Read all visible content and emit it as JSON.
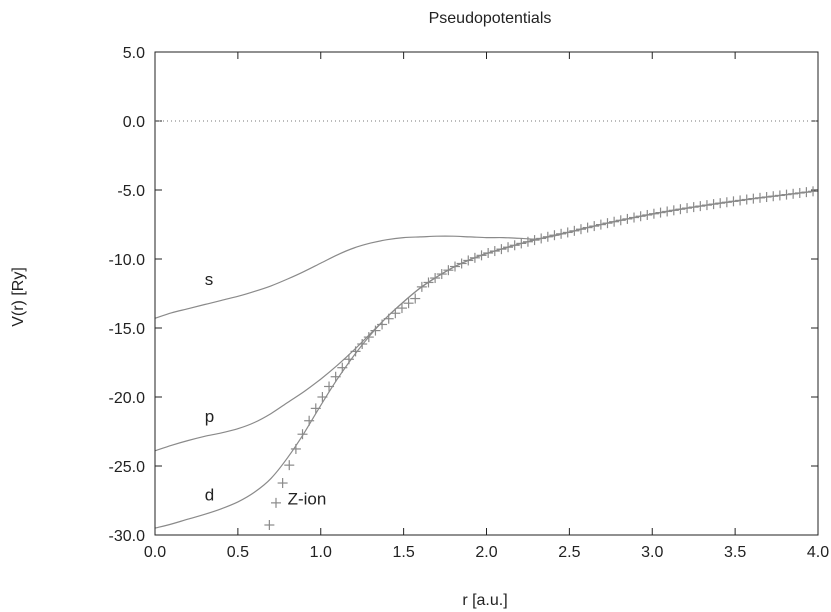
{
  "chart_data": {
    "type": "line",
    "title": "Pseudopotentials",
    "xlabel": "r [a.u.]",
    "ylabel": "V(r) [Ry]",
    "xlim": [
      0,
      4
    ],
    "ylim": [
      -30,
      5
    ],
    "x_ticks": [
      "0.0",
      "0.5",
      "1.0",
      "1.5",
      "2.0",
      "2.5",
      "3.0",
      "3.5",
      "4.0"
    ],
    "y_ticks": [
      "5.0",
      "0.0",
      "-5.0",
      "-10.0",
      "-15.0",
      "-20.0",
      "-25.0",
      "-30.0"
    ],
    "zero_line": true,
    "grid": false,
    "series": [
      {
        "name": "s",
        "style": "line",
        "label_at": [
          0.3,
          -11.9
        ],
        "points": [
          [
            0,
            -14.3
          ],
          [
            0.1,
            -13.9
          ],
          [
            0.2,
            -13.6
          ],
          [
            0.3,
            -13.3
          ],
          [
            0.4,
            -13.0
          ],
          [
            0.5,
            -12.7
          ],
          [
            0.6,
            -12.35
          ],
          [
            0.7,
            -11.95
          ],
          [
            0.8,
            -11.45
          ],
          [
            0.9,
            -10.9
          ],
          [
            1.0,
            -10.3
          ],
          [
            1.1,
            -9.7
          ],
          [
            1.2,
            -9.2
          ],
          [
            1.3,
            -8.85
          ],
          [
            1.4,
            -8.6
          ],
          [
            1.5,
            -8.45
          ],
          [
            1.6,
            -8.4
          ],
          [
            1.7,
            -8.35
          ],
          [
            1.8,
            -8.35
          ],
          [
            1.9,
            -8.4
          ],
          [
            2.0,
            -8.45
          ],
          [
            2.1,
            -8.45
          ],
          [
            2.2,
            -8.5
          ],
          [
            2.3,
            -8.55
          ],
          [
            2.4,
            -8.35
          ],
          [
            2.5,
            -8.05
          ],
          [
            2.6,
            -7.75
          ],
          [
            2.7,
            -7.48
          ],
          [
            2.8,
            -7.22
          ],
          [
            2.9,
            -6.97
          ],
          [
            3.0,
            -6.74
          ],
          [
            3.2,
            -6.33
          ],
          [
            3.4,
            -5.97
          ],
          [
            3.6,
            -5.64
          ],
          [
            3.8,
            -5.35
          ],
          [
            4.0,
            -5.05
          ]
        ]
      },
      {
        "name": "p",
        "style": "line",
        "label_at": [
          0.3,
          -21.8
        ],
        "points": [
          [
            0,
            -23.9
          ],
          [
            0.1,
            -23.5
          ],
          [
            0.2,
            -23.15
          ],
          [
            0.3,
            -22.85
          ],
          [
            0.4,
            -22.6
          ],
          [
            0.5,
            -22.3
          ],
          [
            0.6,
            -21.85
          ],
          [
            0.7,
            -21.2
          ],
          [
            0.8,
            -20.4
          ],
          [
            0.9,
            -19.6
          ],
          [
            1.0,
            -18.7
          ],
          [
            1.1,
            -17.7
          ],
          [
            1.2,
            -16.6
          ],
          [
            1.3,
            -15.4
          ],
          [
            1.4,
            -14.2
          ],
          [
            1.5,
            -13.1
          ],
          [
            1.6,
            -12.1
          ],
          [
            1.7,
            -11.3
          ],
          [
            1.8,
            -10.6
          ],
          [
            1.9,
            -10.05
          ],
          [
            2.0,
            -9.6
          ],
          [
            2.1,
            -9.25
          ],
          [
            2.2,
            -8.9
          ],
          [
            2.3,
            -8.6
          ],
          [
            2.4,
            -8.3
          ],
          [
            2.5,
            -8.05
          ],
          [
            2.6,
            -7.75
          ],
          [
            2.7,
            -7.48
          ],
          [
            2.8,
            -7.22
          ],
          [
            2.9,
            -6.97
          ],
          [
            3.0,
            -6.74
          ],
          [
            3.2,
            -6.33
          ],
          [
            3.4,
            -5.97
          ],
          [
            3.6,
            -5.64
          ],
          [
            3.8,
            -5.35
          ],
          [
            4.0,
            -5.05
          ]
        ]
      },
      {
        "name": "d",
        "style": "line",
        "label_at": [
          0.3,
          -27.5
        ],
        "points": [
          [
            0,
            -29.5
          ],
          [
            0.1,
            -29.2
          ],
          [
            0.2,
            -28.85
          ],
          [
            0.3,
            -28.5
          ],
          [
            0.4,
            -28.1
          ],
          [
            0.5,
            -27.6
          ],
          [
            0.6,
            -26.9
          ],
          [
            0.7,
            -25.9
          ],
          [
            0.8,
            -24.4
          ],
          [
            0.9,
            -22.6
          ],
          [
            1.0,
            -20.6
          ],
          [
            1.1,
            -18.7
          ],
          [
            1.2,
            -17.0
          ],
          [
            1.3,
            -15.5
          ],
          [
            1.4,
            -14.2
          ],
          [
            1.5,
            -13.1
          ],
          [
            1.6,
            -12.1
          ],
          [
            1.7,
            -11.3
          ],
          [
            1.8,
            -10.6
          ],
          [
            1.9,
            -10.05
          ],
          [
            2.0,
            -9.6
          ],
          [
            2.1,
            -9.25
          ],
          [
            2.2,
            -8.9
          ],
          [
            2.3,
            -8.6
          ],
          [
            2.4,
            -8.3
          ],
          [
            2.5,
            -8.05
          ],
          [
            2.6,
            -7.75
          ],
          [
            2.7,
            -7.48
          ],
          [
            2.8,
            -7.22
          ],
          [
            2.9,
            -6.97
          ],
          [
            3.0,
            -6.74
          ],
          [
            3.2,
            -6.33
          ],
          [
            3.4,
            -5.97
          ],
          [
            3.6,
            -5.64
          ],
          [
            3.8,
            -5.35
          ],
          [
            4.0,
            -5.05
          ]
        ]
      },
      {
        "name": "Z-ion",
        "style": "markers",
        "label_at": [
          0.8,
          -27.8
        ],
        "x": [
          0.69,
          0.73,
          0.77,
          0.81,
          0.85,
          0.89,
          0.93,
          0.97,
          1.01,
          1.05,
          1.09,
          1.13,
          1.17,
          1.21,
          1.25,
          1.29,
          1.33,
          1.37,
          1.41,
          1.45,
          1.49,
          1.53,
          1.57,
          1.61,
          1.65,
          1.69,
          1.73,
          1.77,
          1.81,
          1.85,
          1.89,
          1.93,
          1.97,
          2.01,
          2.05,
          2.09,
          2.13,
          2.17,
          2.21,
          2.25,
          2.29,
          2.33,
          2.37,
          2.41,
          2.45,
          2.49,
          2.53,
          2.57,
          2.61,
          2.65,
          2.69,
          2.73,
          2.77,
          2.81,
          2.85,
          2.89,
          2.93,
          2.97,
          3.01,
          3.05,
          3.09,
          3.13,
          3.17,
          3.21,
          3.25,
          3.29,
          3.33,
          3.37,
          3.41,
          3.45,
          3.49,
          3.53,
          3.57,
          3.61,
          3.65,
          3.69,
          3.73,
          3.77,
          3.81,
          3.85,
          3.89,
          3.93,
          3.97
        ]
      }
    ]
  }
}
